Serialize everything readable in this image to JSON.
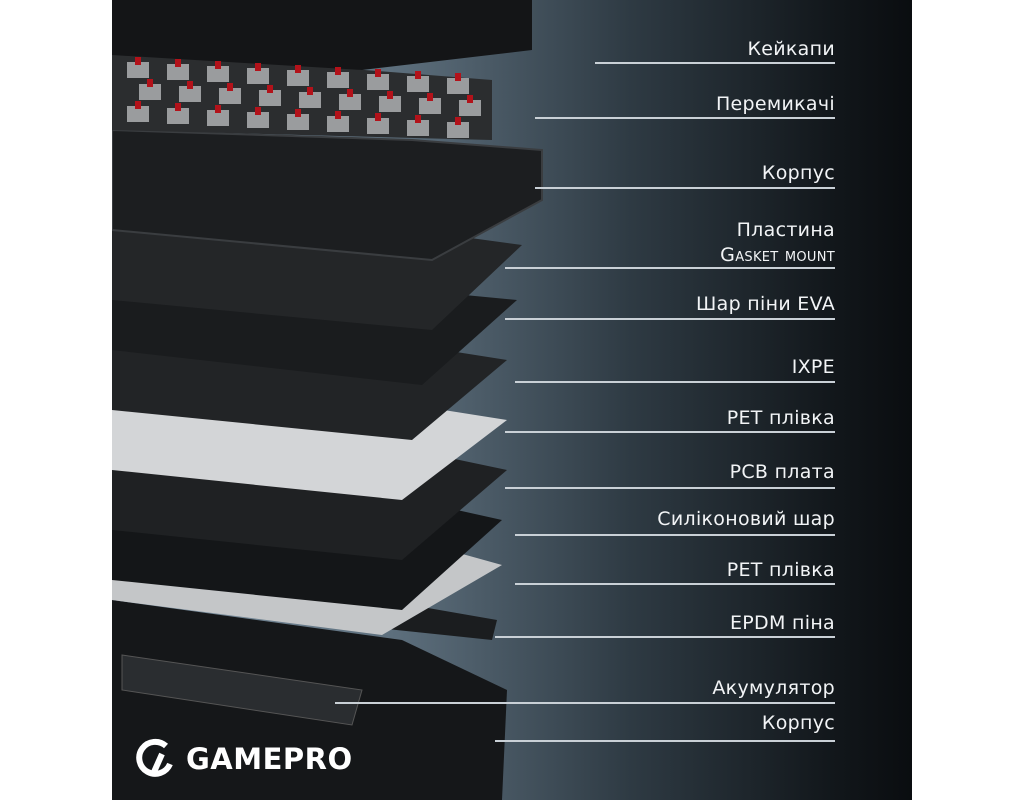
{
  "brand": {
    "name": "GAMEPRO",
    "icon": "gamepro-logo-icon",
    "case_logo": "GAMEPRO"
  },
  "labels": [
    {
      "id": "keycaps",
      "text": "Кейкапи"
    },
    {
      "id": "switches",
      "text": "Перемикачі"
    },
    {
      "id": "case-top",
      "text": "Корпус"
    },
    {
      "id": "plate",
      "text": "Пластина",
      "text2": "Gasket mount"
    },
    {
      "id": "eva-foam",
      "text": "Шар піни EVA"
    },
    {
      "id": "ixpe",
      "text": "IXPE"
    },
    {
      "id": "pet-film-1",
      "text": "PET плівка"
    },
    {
      "id": "pcb",
      "text": "PCB плата"
    },
    {
      "id": "silicone",
      "text": "Силіконовий шар"
    },
    {
      "id": "pet-film-2",
      "text": "PET плівка"
    },
    {
      "id": "epdm",
      "text": "EPDM піна"
    },
    {
      "id": "battery",
      "text": "Акумулятор"
    },
    {
      "id": "case-bottom",
      "text": "Корпус"
    }
  ],
  "colors": {
    "switch_stem": "#b3121a",
    "label_text": "#f2f4f6",
    "leader_line": "#c9d0d6"
  }
}
